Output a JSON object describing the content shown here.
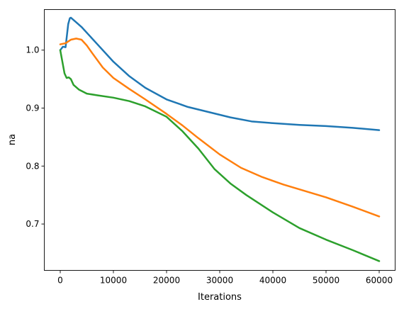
{
  "chart_data": {
    "type": "line",
    "title": "",
    "xlabel": "Iterations",
    "ylabel": "na",
    "xlim": [
      -3000,
      63000
    ],
    "ylim": [
      0.62,
      1.07
    ],
    "xticks": [
      0,
      10000,
      20000,
      30000,
      40000,
      50000,
      60000
    ],
    "xtick_labels": [
      "0",
      "10000",
      "20000",
      "30000",
      "40000",
      "50000",
      "60000"
    ],
    "yticks": [
      0.7,
      0.8,
      0.9,
      1.0
    ],
    "ytick_labels": [
      "0.7",
      "0.8",
      "0.9",
      "1.0"
    ],
    "grid": false,
    "legend": "none",
    "series": [
      {
        "color": "#1f77b4",
        "x": [
          0,
          500,
          1000,
          1500,
          1800,
          2000,
          2500,
          3000,
          4000,
          5000,
          7000,
          10000,
          13000,
          16000,
          20000,
          24000,
          28000,
          32000,
          36000,
          40000,
          45000,
          50000,
          55000,
          60000
        ],
        "y": [
          1.0,
          1.006,
          1.005,
          1.045,
          1.055,
          1.056,
          1.052,
          1.048,
          1.04,
          1.03,
          1.01,
          0.98,
          0.955,
          0.935,
          0.915,
          0.902,
          0.893,
          0.884,
          0.877,
          0.874,
          0.871,
          0.869,
          0.866,
          0.862
        ]
      },
      {
        "color": "#ff7f0e",
        "x": [
          0,
          1000,
          2000,
          3000,
          4000,
          5000,
          6000,
          8000,
          10000,
          13000,
          16000,
          20000,
          23000,
          26000,
          30000,
          34000,
          38000,
          42000,
          46000,
          50000,
          55000,
          60000
        ],
        "y": [
          1.01,
          1.012,
          1.018,
          1.02,
          1.018,
          1.008,
          0.995,
          0.97,
          0.952,
          0.933,
          0.915,
          0.89,
          0.87,
          0.848,
          0.82,
          0.797,
          0.781,
          0.768,
          0.757,
          0.746,
          0.73,
          0.713
        ]
      },
      {
        "color": "#2ca02c",
        "x": [
          0,
          300,
          800,
          1200,
          1600,
          2000,
          2500,
          3500,
          5000,
          7000,
          10000,
          13000,
          16000,
          20000,
          23000,
          26000,
          29000,
          32000,
          35000,
          40000,
          45000,
          50000,
          55000,
          60000
        ],
        "y": [
          1.0,
          0.985,
          0.96,
          0.952,
          0.953,
          0.95,
          0.94,
          0.932,
          0.925,
          0.922,
          0.918,
          0.912,
          0.903,
          0.885,
          0.86,
          0.83,
          0.795,
          0.77,
          0.75,
          0.72,
          0.693,
          0.673,
          0.655,
          0.636
        ]
      }
    ]
  }
}
